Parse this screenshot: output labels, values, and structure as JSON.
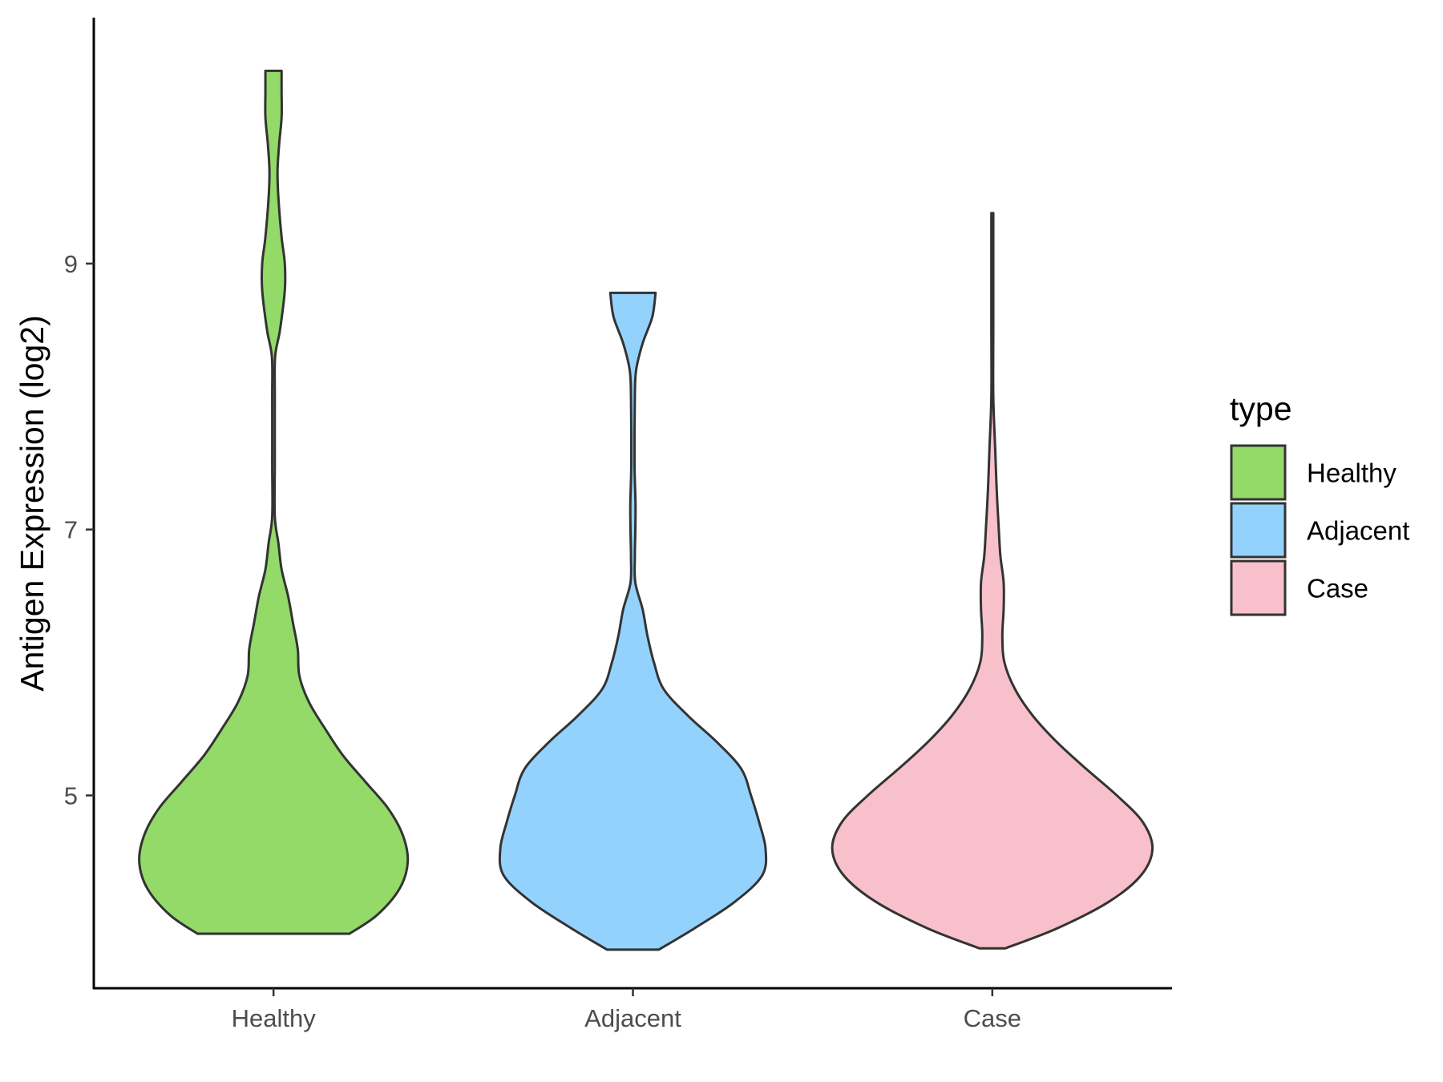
{
  "chart_data": {
    "type": "violin",
    "title": "",
    "xlabel": "",
    "ylabel": "Antigen Expression (log2)",
    "ylim": [
      3.55,
      10.85
    ],
    "yticks": [
      5,
      7,
      9
    ],
    "grid": false,
    "legend_position": "right",
    "legend_title": "type",
    "categories": [
      "Healthy",
      "Adjacent",
      "Case"
    ],
    "series": [
      {
        "name": "Healthy",
        "color": "#93da69",
        "min": 3.96,
        "max": 10.45,
        "profile": [
          [
            3.96,
            0.47
          ],
          [
            4.1,
            0.64
          ],
          [
            4.3,
            0.78
          ],
          [
            4.5,
            0.83
          ],
          [
            4.7,
            0.8
          ],
          [
            4.9,
            0.71
          ],
          [
            5.1,
            0.57
          ],
          [
            5.3,
            0.43
          ],
          [
            5.5,
            0.32
          ],
          [
            5.7,
            0.22
          ],
          [
            5.9,
            0.16
          ],
          [
            6.1,
            0.15
          ],
          [
            6.3,
            0.12
          ],
          [
            6.5,
            0.09
          ],
          [
            6.7,
            0.05
          ],
          [
            6.9,
            0.03
          ],
          [
            7.1,
            0.008
          ],
          [
            7.5,
            0.008
          ],
          [
            8.0,
            0.008
          ],
          [
            8.3,
            0.01
          ],
          [
            8.5,
            0.04
          ],
          [
            8.8,
            0.07
          ],
          [
            9.0,
            0.07
          ],
          [
            9.2,
            0.05
          ],
          [
            9.5,
            0.03
          ],
          [
            9.7,
            0.025
          ],
          [
            9.9,
            0.035
          ],
          [
            10.1,
            0.05
          ],
          [
            10.3,
            0.05
          ],
          [
            10.45,
            0.05
          ]
        ]
      },
      {
        "name": "Adjacent",
        "color": "#93d2fd",
        "min": 3.84,
        "max": 8.78,
        "profile": [
          [
            3.84,
            0.16
          ],
          [
            4.0,
            0.38
          ],
          [
            4.2,
            0.63
          ],
          [
            4.4,
            0.8
          ],
          [
            4.6,
            0.82
          ],
          [
            4.8,
            0.78
          ],
          [
            5.0,
            0.73
          ],
          [
            5.2,
            0.67
          ],
          [
            5.4,
            0.52
          ],
          [
            5.6,
            0.34
          ],
          [
            5.8,
            0.19
          ],
          [
            6.0,
            0.13
          ],
          [
            6.2,
            0.09
          ],
          [
            6.4,
            0.06
          ],
          [
            6.6,
            0.015
          ],
          [
            6.8,
            0.012
          ],
          [
            7.0,
            0.015
          ],
          [
            7.2,
            0.016
          ],
          [
            7.5,
            0.01
          ],
          [
            8.0,
            0.012
          ],
          [
            8.2,
            0.02
          ],
          [
            8.4,
            0.06
          ],
          [
            8.6,
            0.12
          ],
          [
            8.78,
            0.14
          ]
        ]
      },
      {
        "name": "Case",
        "color": "#f7c0cb",
        "min": 3.85,
        "max": 9.38,
        "profile": [
          [
            3.85,
            0.08
          ],
          [
            4.0,
            0.4
          ],
          [
            4.2,
            0.72
          ],
          [
            4.4,
            0.92
          ],
          [
            4.6,
            0.99
          ],
          [
            4.8,
            0.93
          ],
          [
            5.0,
            0.77
          ],
          [
            5.2,
            0.58
          ],
          [
            5.4,
            0.4
          ],
          [
            5.6,
            0.25
          ],
          [
            5.8,
            0.14
          ],
          [
            6.0,
            0.075
          ],
          [
            6.2,
            0.062
          ],
          [
            6.4,
            0.07
          ],
          [
            6.6,
            0.07
          ],
          [
            6.8,
            0.05
          ],
          [
            7.0,
            0.04
          ],
          [
            7.3,
            0.027
          ],
          [
            7.6,
            0.018
          ],
          [
            8.0,
            0.005
          ],
          [
            8.5,
            0.001
          ],
          [
            9.0,
            0.001
          ],
          [
            9.38,
            0.001
          ]
        ]
      }
    ]
  }
}
